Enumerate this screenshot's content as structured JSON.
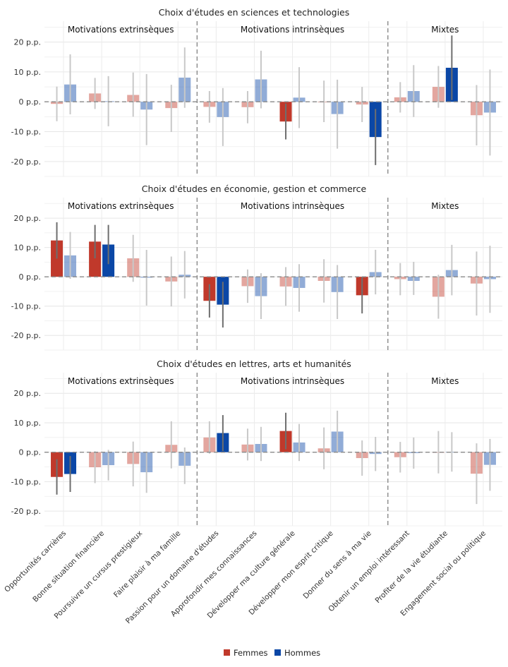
{
  "chart_data": {
    "type": "bar",
    "legend": {
      "placement": "bottom",
      "entries": [
        {
          "name": "Femmes",
          "color": "#c0392b"
        },
        {
          "name": "Hommes",
          "color": "#0b47a6"
        }
      ]
    },
    "series_colors": {
      "Femmes": "#c0392b",
      "Hommes": "#0b47a6"
    },
    "faded_opacity": 0.45,
    "ylim": [
      -25,
      27
    ],
    "yticks": [
      -20,
      -10,
      0,
      10,
      20
    ],
    "ytick_labels": [
      "-20 p.p.",
      "-10 p.p.",
      "0 p.p.",
      "10 p.p.",
      "20 p.p."
    ],
    "categories": [
      "Opportunités carrières",
      "Bonne situation financière",
      "Poursuivre un cursus prestigieux",
      "Faire plaisir à ma famille",
      "Passion pour un domaine d'études",
      "Approfondir mes connaissances",
      "Développer ma culture générale",
      "Développer mon esprit critique",
      "Donner du sens à ma vie",
      "Obtenir un emploi intéressant",
      "Profiter de la vie étudiante",
      "Engagement social ou politique"
    ],
    "groups": [
      {
        "label": "Motivations extrinsèques",
        "start": 0,
        "end": 3
      },
      {
        "label": "Motivations intrinsèques",
        "start": 4,
        "end": 8
      },
      {
        "label": "Mixtes",
        "start": 9,
        "end": 11
      }
    ],
    "panels": [
      {
        "title": "Choix d'études en sciences et technologies",
        "Femmes": [
          {
            "v": -0.7,
            "lo": -6.5,
            "hi": 5.1,
            "sig": false
          },
          {
            "v": 2.8,
            "lo": -2.4,
            "hi": 8.0,
            "sig": false
          },
          {
            "v": 2.3,
            "lo": -5.0,
            "hi": 9.8,
            "sig": false
          },
          {
            "v": -2.1,
            "lo": -10.1,
            "hi": 5.7,
            "sig": false
          },
          {
            "v": -1.7,
            "lo": -7.0,
            "hi": 3.6,
            "sig": false
          },
          {
            "v": -1.8,
            "lo": -7.2,
            "hi": 3.6,
            "sig": false
          },
          {
            "v": -6.6,
            "lo": -12.6,
            "hi": -0.6,
            "sig": true
          },
          {
            "v": -0.1,
            "lo": -6.8,
            "hi": 7.1,
            "sig": false
          },
          {
            "v": -0.9,
            "lo": -6.8,
            "hi": 5.0,
            "sig": false
          },
          {
            "v": 1.5,
            "lo": -3.6,
            "hi": 6.6,
            "sig": false
          },
          {
            "v": 5.0,
            "lo": -2.0,
            "hi": 12.0,
            "sig": false
          },
          {
            "v": -4.5,
            "lo": -14.6,
            "hi": 5.6,
            "sig": false
          }
        ],
        "Hommes": [
          {
            "v": 5.8,
            "lo": -4.2,
            "hi": 15.9,
            "sig": false
          },
          {
            "v": 0.2,
            "lo": -8.2,
            "hi": 8.6,
            "sig": false
          },
          {
            "v": -2.6,
            "lo": -14.5,
            "hi": 9.3,
            "sig": false
          },
          {
            "v": 8.1,
            "lo": -2.0,
            "hi": 18.2,
            "sig": false
          },
          {
            "v": -5.1,
            "lo": -14.8,
            "hi": 4.6,
            "sig": false
          },
          {
            "v": 7.5,
            "lo": -2.2,
            "hi": 17.1,
            "sig": false
          },
          {
            "v": 1.4,
            "lo": -8.8,
            "hi": 11.6,
            "sig": false
          },
          {
            "v": -4.1,
            "lo": -15.7,
            "hi": 7.4,
            "sig": false
          },
          {
            "v": -11.8,
            "lo": -21.2,
            "hi": -2.4,
            "sig": true
          },
          {
            "v": 3.6,
            "lo": -5.1,
            "hi": 12.3,
            "sig": false
          },
          {
            "v": 11.4,
            "lo": 0.6,
            "hi": 22.2,
            "sig": true
          },
          {
            "v": -3.6,
            "lo": -18.0,
            "hi": 10.8,
            "sig": false
          }
        ]
      },
      {
        "title": "Choix d'études en économie, gestion et commerce",
        "Femmes": [
          {
            "v": 12.4,
            "lo": 6.2,
            "hi": 18.6,
            "sig": true
          },
          {
            "v": 12.0,
            "lo": 6.3,
            "hi": 17.7,
            "sig": true
          },
          {
            "v": 6.3,
            "lo": -1.7,
            "hi": 14.3,
            "sig": false
          },
          {
            "v": -1.6,
            "lo": -10.1,
            "hi": 6.9,
            "sig": false
          },
          {
            "v": -8.2,
            "lo": -13.9,
            "hi": -2.5,
            "sig": true
          },
          {
            "v": -3.2,
            "lo": -8.9,
            "hi": 2.5,
            "sig": false
          },
          {
            "v": -3.3,
            "lo": -9.9,
            "hi": 3.3,
            "sig": false
          },
          {
            "v": -1.4,
            "lo": -8.8,
            "hi": 6.0,
            "sig": false
          },
          {
            "v": -6.3,
            "lo": -12.5,
            "hi": -0.1,
            "sig": true
          },
          {
            "v": -0.8,
            "lo": -6.3,
            "hi": 4.7,
            "sig": false
          },
          {
            "v": -6.8,
            "lo": -14.3,
            "hi": 0.7,
            "sig": false
          },
          {
            "v": -2.3,
            "lo": -13.2,
            "hi": 8.6,
            "sig": false
          }
        ],
        "Hommes": [
          {
            "v": 7.3,
            "lo": -0.7,
            "hi": 15.3,
            "sig": false
          },
          {
            "v": 11.0,
            "lo": 4.3,
            "hi": 17.7,
            "sig": true
          },
          {
            "v": -0.3,
            "lo": -9.8,
            "hi": 9.2,
            "sig": false
          },
          {
            "v": 0.7,
            "lo": -7.4,
            "hi": 8.8,
            "sig": false
          },
          {
            "v": -9.5,
            "lo": -17.3,
            "hi": -1.7,
            "sig": true
          },
          {
            "v": -6.6,
            "lo": -14.4,
            "hi": 1.2,
            "sig": false
          },
          {
            "v": -3.8,
            "lo": -11.9,
            "hi": 4.3,
            "sig": false
          },
          {
            "v": -5.2,
            "lo": -14.4,
            "hi": 4.0,
            "sig": false
          },
          {
            "v": 1.6,
            "lo": -6.0,
            "hi": 9.2,
            "sig": false
          },
          {
            "v": -1.4,
            "lo": -6.2,
            "hi": 5.1,
            "sig": false
          },
          {
            "v": 2.3,
            "lo": -6.3,
            "hi": 10.9,
            "sig": false
          },
          {
            "v": -0.8,
            "lo": -12.3,
            "hi": 10.6,
            "sig": false
          }
        ]
      },
      {
        "title": "Choix d'études en lettres, arts et humanités",
        "Femmes": [
          {
            "v": -8.4,
            "lo": -14.4,
            "hi": -2.4,
            "sig": true
          },
          {
            "v": -5.1,
            "lo": -10.5,
            "hi": 0.3,
            "sig": false
          },
          {
            "v": -4.0,
            "lo": -11.6,
            "hi": 3.6,
            "sig": false
          },
          {
            "v": 2.5,
            "lo": -5.5,
            "hi": 10.5,
            "sig": false
          },
          {
            "v": 5.0,
            "lo": -0.5,
            "hi": 10.5,
            "sig": false
          },
          {
            "v": 2.6,
            "lo": -2.8,
            "hi": 8.0,
            "sig": false
          },
          {
            "v": 7.2,
            "lo": 1.0,
            "hi": 13.4,
            "sig": true
          },
          {
            "v": 1.3,
            "lo": -5.8,
            "hi": 8.4,
            "sig": false
          },
          {
            "v": -2.0,
            "lo": -8.0,
            "hi": 4.0,
            "sig": false
          },
          {
            "v": -1.7,
            "lo": -6.9,
            "hi": 3.5,
            "sig": false
          },
          {
            "v": 0.0,
            "lo": -7.2,
            "hi": 7.2,
            "sig": false
          },
          {
            "v": -7.3,
            "lo": -17.6,
            "hi": 3.0,
            "sig": false
          }
        ],
        "Hommes": [
          {
            "v": -7.4,
            "lo": -13.5,
            "hi": -1.3,
            "sig": true
          },
          {
            "v": -4.4,
            "lo": -9.6,
            "hi": 0.8,
            "sig": false
          },
          {
            "v": -6.8,
            "lo": -13.8,
            "hi": 0.2,
            "sig": false
          },
          {
            "v": -4.6,
            "lo": -10.8,
            "hi": 1.6,
            "sig": false
          },
          {
            "v": 6.5,
            "lo": 0.4,
            "hi": 12.6,
            "sig": true
          },
          {
            "v": 2.8,
            "lo": -3.0,
            "hi": 8.6,
            "sig": false
          },
          {
            "v": 3.3,
            "lo": -3.0,
            "hi": 9.6,
            "sig": false
          },
          {
            "v": 7.0,
            "lo": -0.1,
            "hi": 14.1,
            "sig": false
          },
          {
            "v": -0.6,
            "lo": -6.4,
            "hi": 5.2,
            "sig": false
          },
          {
            "v": -0.3,
            "lo": -5.6,
            "hi": 5.0,
            "sig": false
          },
          {
            "v": 0.1,
            "lo": -6.6,
            "hi": 6.8,
            "sig": false
          },
          {
            "v": -4.3,
            "lo": -13.1,
            "hi": 4.5,
            "sig": false
          }
        ]
      }
    ]
  }
}
